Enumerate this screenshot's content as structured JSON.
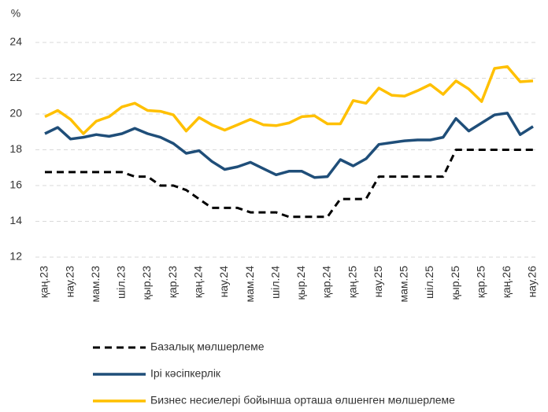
{
  "chart_data": {
    "type": "line",
    "y_label": "%",
    "categories": [
      "қаң.23",
      null,
      "нау.23",
      null,
      "мам.23",
      null,
      "шіл.23",
      null,
      "қыр.23",
      null,
      "қар.23",
      null,
      "қаң.24",
      null,
      "нау.24",
      null,
      "мам.24",
      null,
      "шіл.24",
      null,
      "қыр.24",
      null,
      "қар.24",
      null,
      "қаң.25",
      null,
      "нау.25",
      null,
      "мам.25",
      null,
      "шіл.25",
      null,
      "қыр.25",
      null,
      "қар.25",
      null,
      "қаң.26",
      null,
      "нау.26"
    ],
    "series": [
      {
        "name": "Базалық мөлшерлеме",
        "color": "#000000",
        "dashed": true,
        "values": [
          16.75,
          16.75,
          16.75,
          16.75,
          16.75,
          16.75,
          16.75,
          16.5,
          16.5,
          16,
          16,
          15.75,
          15.25,
          14.75,
          14.75,
          14.75,
          14.5,
          14.5,
          14.5,
          14.25,
          14.25,
          14.25,
          14.25,
          15.25,
          15.25,
          15.25,
          16.5,
          16.5,
          16.5,
          16.5,
          16.5,
          16.5,
          18,
          18,
          18,
          18,
          18,
          18,
          18
        ]
      },
      {
        "name": "Ірі кәсіпкерлік",
        "color": "#1f4e79",
        "values": [
          18.9,
          19.25,
          18.6,
          18.7,
          18.85,
          18.75,
          18.9,
          19.2,
          18.9,
          18.7,
          18.35,
          17.8,
          17.95,
          17.35,
          16.9,
          17.05,
          17.3,
          16.95,
          16.6,
          16.8,
          16.8,
          16.45,
          16.5,
          17.45,
          17.1,
          17.5,
          18.3,
          18.4,
          18.5,
          18.55,
          18.55,
          18.7,
          19.75,
          19.05,
          19.5,
          19.95,
          20.05,
          18.85,
          19.3
        ]
      },
      {
        "name": "Бизнес несиелері бойынша орташа өлшенген мөлшерлеме",
        "color": "#ffc000",
        "values": [
          19.85,
          20.2,
          19.7,
          18.9,
          19.6,
          19.85,
          20.4,
          20.6,
          20.2,
          20.15,
          19.95,
          19.05,
          19.8,
          19.4,
          19.1,
          19.4,
          19.7,
          19.4,
          19.35,
          19.5,
          19.85,
          19.9,
          19.45,
          19.45,
          20.75,
          20.6,
          21.45,
          21.05,
          21.0,
          21.3,
          21.65,
          21.1,
          21.85,
          21.4,
          20.7,
          22.55,
          22.65,
          21.8,
          21.85
        ]
      }
    ],
    "ylim": [
      12,
      24
    ],
    "yticks": [
      12,
      14,
      16,
      18,
      20,
      22,
      24
    ],
    "grid": true
  }
}
